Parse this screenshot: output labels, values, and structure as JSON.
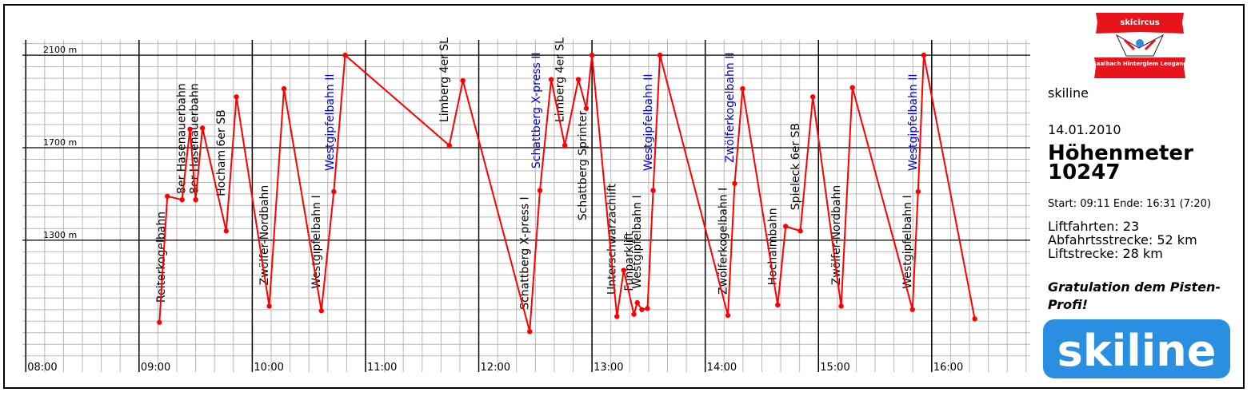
{
  "sidebar": {
    "brand": "skiline",
    "date": "14.01.2010",
    "metric_label": "Höhenmeter",
    "metric_value": "10247",
    "timespan": "Start: 09:11 Ende: 16:31 (7:20)",
    "lifts": "Liftfahrten: 23",
    "downhill": "Abfahrtsstrecke: 52 km",
    "lift_distance": "Liftstrecke: 28 km",
    "congrats": "Gratulation dem Pisten-Profi!",
    "logo_small_top": "skicircus",
    "logo_small_bottom": "Saalbach Hinterglem Leogang",
    "logo_big": "skiline"
  },
  "colors": {
    "line": "#ff0000",
    "blue_label": "#0000cc",
    "logo_blue": "#2a8fe0",
    "logo_red": "#e8141c"
  },
  "chart_data": {
    "type": "line",
    "x_unit": "time (decimal hours)",
    "y_unit": "m",
    "xlim": [
      7.97,
      16.87
    ],
    "ylim": [
      730,
      2166
    ],
    "x_ticks": [
      "08:00",
      "09:00",
      "10:00",
      "11:00",
      "12:00",
      "13:00",
      "14:00",
      "15:00",
      "16:00"
    ],
    "y_ticks": [
      "2100 m",
      "1700 m",
      "1300 m"
    ],
    "grid": true,
    "points": [
      {
        "x": 9.18,
        "y": 945
      },
      {
        "x": 9.25,
        "y": 1490
      },
      {
        "x": 9.38,
        "y": 1475
      },
      {
        "x": 9.45,
        "y": 1780
      },
      {
        "x": 9.5,
        "y": 1475
      },
      {
        "x": 9.56,
        "y": 1785
      },
      {
        "x": 9.77,
        "y": 1340
      },
      {
        "x": 9.86,
        "y": 1920
      },
      {
        "x": 10.15,
        "y": 1015
      },
      {
        "x": 10.28,
        "y": 1955
      },
      {
        "x": 10.61,
        "y": 995
      },
      {
        "x": 10.72,
        "y": 1510
      },
      {
        "x": 10.82,
        "y": 2100
      },
      {
        "x": 11.74,
        "y": 1710
      },
      {
        "x": 11.86,
        "y": 1990
      },
      {
        "x": 12.45,
        "y": 905
      },
      {
        "x": 12.54,
        "y": 1515
      },
      {
        "x": 12.64,
        "y": 1995
      },
      {
        "x": 12.76,
        "y": 1710
      },
      {
        "x": 12.88,
        "y": 1995
      },
      {
        "x": 12.95,
        "y": 1870
      },
      {
        "x": 13.0,
        "y": 2100
      },
      {
        "x": 13.22,
        "y": 970
      },
      {
        "x": 13.28,
        "y": 1170
      },
      {
        "x": 13.37,
        "y": 980
      },
      {
        "x": 13.4,
        "y": 1030
      },
      {
        "x": 13.44,
        "y": 1000
      },
      {
        "x": 13.49,
        "y": 1005
      },
      {
        "x": 13.54,
        "y": 1515
      },
      {
        "x": 13.6,
        "y": 2100
      },
      {
        "x": 14.2,
        "y": 975
      },
      {
        "x": 14.26,
        "y": 1545
      },
      {
        "x": 14.33,
        "y": 1955
      },
      {
        "x": 14.64,
        "y": 1020
      },
      {
        "x": 14.71,
        "y": 1360
      },
      {
        "x": 14.84,
        "y": 1340
      },
      {
        "x": 14.95,
        "y": 1920
      },
      {
        "x": 15.2,
        "y": 1015
      },
      {
        "x": 15.3,
        "y": 1960
      },
      {
        "x": 15.83,
        "y": 1000
      },
      {
        "x": 15.88,
        "y": 1510
      },
      {
        "x": 15.93,
        "y": 2100
      },
      {
        "x": 16.38,
        "y": 960
      }
    ],
    "annotations": [
      {
        "text": "Reiterkogelbahn",
        "x": 9.25,
        "y": 1030,
        "color": "black"
      },
      {
        "text": "8er Hasenauerbahn",
        "x": 9.43,
        "y": 1500,
        "color": "black"
      },
      {
        "text": "8er Hasenauerbahn",
        "x": 9.54,
        "y": 1500,
        "color": "black"
      },
      {
        "text": "Hocham 6er SB",
        "x": 9.78,
        "y": 1490,
        "color": "black"
      },
      {
        "text": "Zwölfer-Nordbahn",
        "x": 10.16,
        "y": 1105,
        "color": "black"
      },
      {
        "text": "Westgipfelbahn I",
        "x": 10.62,
        "y": 1090,
        "color": "black"
      },
      {
        "text": "Westgipfelbahn II",
        "x": 10.74,
        "y": 1600,
        "color": "blue"
      },
      {
        "text": "Limberg 4er SL",
        "x": 11.75,
        "y": 1810,
        "color": "black"
      },
      {
        "text": "Schattberg X-press I",
        "x": 12.46,
        "y": 1000,
        "color": "black"
      },
      {
        "text": "Schattberg X-press II",
        "x": 12.56,
        "y": 1610,
        "color": "blue"
      },
      {
        "text": "Limberg 4er SL",
        "x": 12.77,
        "y": 1810,
        "color": "black"
      },
      {
        "text": "Schattberg Sprinter",
        "x": 12.97,
        "y": 1385,
        "color": "black"
      },
      {
        "text": "Unterschwarzachlift",
        "x": 13.23,
        "y": 1065,
        "color": "black"
      },
      {
        "text": "Funparklift",
        "x": 13.38,
        "y": 1080,
        "color": "black"
      },
      {
        "text": "Westgipfelbahn I",
        "x": 13.45,
        "y": 1090,
        "color": "black"
      },
      {
        "text": "Westgipfelbahn II",
        "x": 13.55,
        "y": 1600,
        "color": "blue"
      },
      {
        "text": "Zwölferkogelbahn I",
        "x": 14.21,
        "y": 1065,
        "color": "black"
      },
      {
        "text": "Zwölferkogelbahn II",
        "x": 14.27,
        "y": 1635,
        "color": "blue"
      },
      {
        "text": "Hochalmbahn",
        "x": 14.65,
        "y": 1105,
        "color": "black"
      },
      {
        "text": "Spieleck 6er SB",
        "x": 14.85,
        "y": 1430,
        "color": "black"
      },
      {
        "text": "Zwölfer-Nordbahn",
        "x": 15.21,
        "y": 1105,
        "color": "black"
      },
      {
        "text": "Westgipfelbahn I",
        "x": 15.84,
        "y": 1090,
        "color": "black"
      },
      {
        "text": "Westgipfelbahn II",
        "x": 15.89,
        "y": 1600,
        "color": "blue"
      }
    ]
  }
}
